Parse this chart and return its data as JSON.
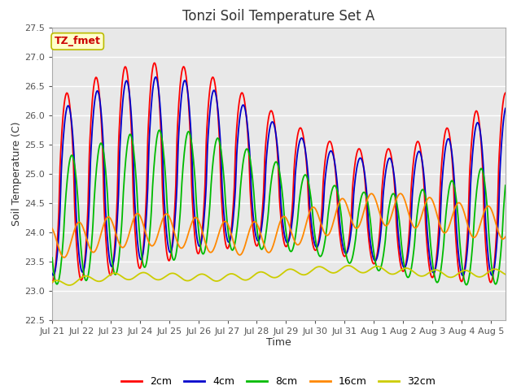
{
  "title": "Tonzi Soil Temperature Set A",
  "xlabel": "Time",
  "ylabel": "Soil Temperature (C)",
  "ylim": [
    22.5,
    27.5
  ],
  "series_colors": [
    "#ff0000",
    "#0000cc",
    "#00bb00",
    "#ff8800",
    "#cccc00"
  ],
  "series_labels": [
    "2cm",
    "4cm",
    "8cm",
    "16cm",
    "32cm"
  ],
  "legend_label": "TZ_fmet",
  "legend_bg": "#ffffcc",
  "legend_border": "#bbbb00",
  "bg_color": "#e8e8e8",
  "grid_color": "#ffffff",
  "title_fontsize": 12,
  "axis_label_fontsize": 9,
  "tick_fontsize": 8,
  "figsize": [
    6.4,
    4.8
  ],
  "dpi": 100
}
